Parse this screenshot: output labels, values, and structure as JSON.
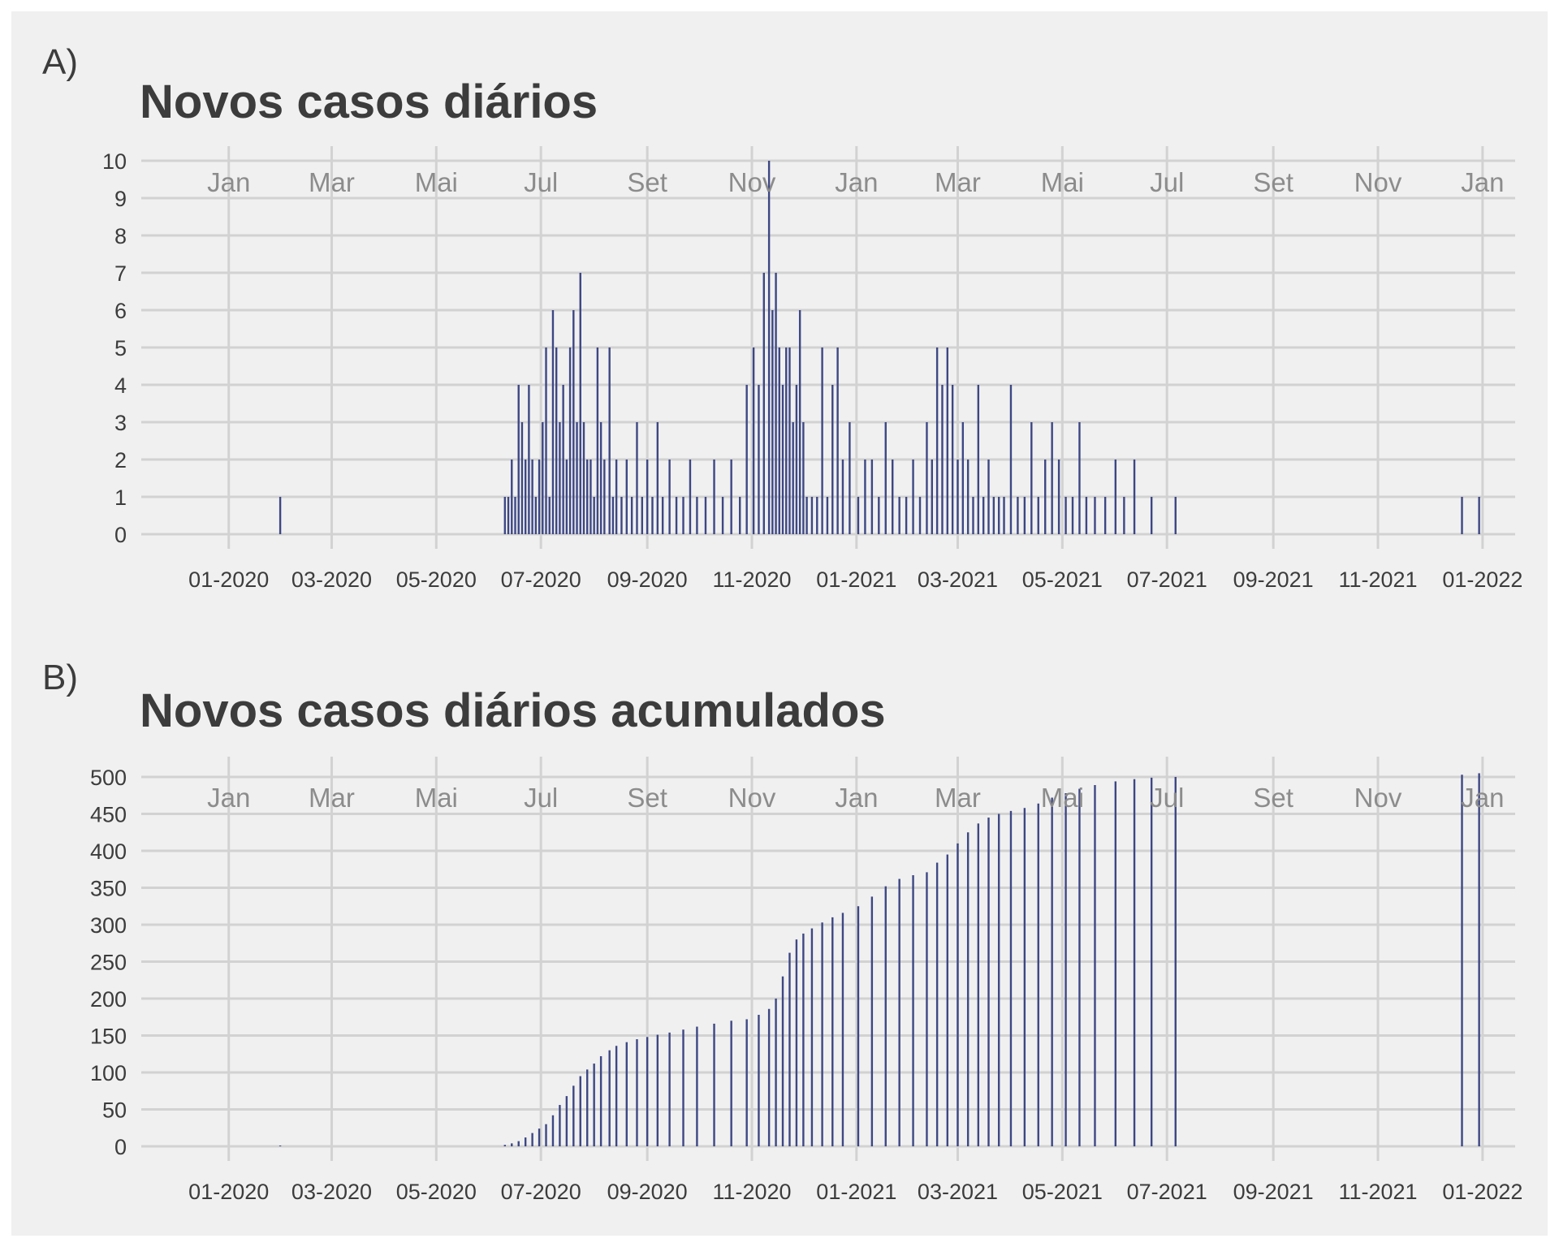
{
  "panels": [
    {
      "tag": "A)",
      "title": "Novos casos diários"
    },
    {
      "tag": "B)",
      "title": "Novos casos diários acumulados"
    }
  ],
  "chart_data": [
    {
      "type": "bar",
      "title": "Novos casos diários",
      "x_axis": "date",
      "xlim": [
        "2019-11-11",
        "2022-01-20"
      ],
      "ylim": [
        0,
        10
      ],
      "yticks": [
        0,
        1,
        2,
        3,
        4,
        5,
        6,
        7,
        8,
        9,
        10
      ],
      "x_ticks_bottom": [
        {
          "date": "2020-01-01",
          "label": "01-2020"
        },
        {
          "date": "2020-03-01",
          "label": "03-2020"
        },
        {
          "date": "2020-05-01",
          "label": "05-2020"
        },
        {
          "date": "2020-07-01",
          "label": "07-2020"
        },
        {
          "date": "2020-09-01",
          "label": "09-2020"
        },
        {
          "date": "2020-11-01",
          "label": "11-2020"
        },
        {
          "date": "2021-01-01",
          "label": "01-2021"
        },
        {
          "date": "2021-03-01",
          "label": "03-2021"
        },
        {
          "date": "2021-05-01",
          "label": "05-2021"
        },
        {
          "date": "2021-07-01",
          "label": "07-2021"
        },
        {
          "date": "2021-09-01",
          "label": "09-2021"
        },
        {
          "date": "2021-11-01",
          "label": "11-2021"
        },
        {
          "date": "2022-01-01",
          "label": "01-2022"
        }
      ],
      "x_ticks_months": [
        "Jan",
        "Mar",
        "Mai",
        "Jul",
        "Set",
        "Nov",
        "Jan",
        "Mar",
        "Mai",
        "Jul",
        "Set",
        "Nov",
        "Jan"
      ],
      "grid": true,
      "bar_color": "#3d4784",
      "x": [
        "2020-01-31",
        "2020-06-10",
        "2020-06-12",
        "2020-06-14",
        "2020-06-16",
        "2020-06-18",
        "2020-06-20",
        "2020-06-22",
        "2020-06-24",
        "2020-06-26",
        "2020-06-28",
        "2020-06-30",
        "2020-07-02",
        "2020-07-04",
        "2020-07-06",
        "2020-07-08",
        "2020-07-10",
        "2020-07-12",
        "2020-07-14",
        "2020-07-16",
        "2020-07-18",
        "2020-07-20",
        "2020-07-22",
        "2020-07-24",
        "2020-07-26",
        "2020-07-28",
        "2020-07-30",
        "2020-08-01",
        "2020-08-03",
        "2020-08-05",
        "2020-08-07",
        "2020-08-10",
        "2020-08-12",
        "2020-08-14",
        "2020-08-17",
        "2020-08-20",
        "2020-08-23",
        "2020-08-26",
        "2020-08-29",
        "2020-09-01",
        "2020-09-04",
        "2020-09-07",
        "2020-09-10",
        "2020-09-14",
        "2020-09-18",
        "2020-09-22",
        "2020-09-26",
        "2020-09-30",
        "2020-10-05",
        "2020-10-10",
        "2020-10-15",
        "2020-10-20",
        "2020-10-25",
        "2020-10-29",
        "2020-11-02",
        "2020-11-05",
        "2020-11-08",
        "2020-11-11",
        "2020-11-13",
        "2020-11-15",
        "2020-11-17",
        "2020-11-19",
        "2020-11-21",
        "2020-11-23",
        "2020-11-25",
        "2020-11-27",
        "2020-11-29",
        "2020-12-01",
        "2020-12-03",
        "2020-12-06",
        "2020-12-09",
        "2020-12-12",
        "2020-12-15",
        "2020-12-18",
        "2020-12-21",
        "2020-12-24",
        "2020-12-28",
        "2021-01-02",
        "2021-01-06",
        "2021-01-10",
        "2021-01-14",
        "2021-01-18",
        "2021-01-22",
        "2021-01-26",
        "2021-01-30",
        "2021-02-03",
        "2021-02-07",
        "2021-02-11",
        "2021-02-14",
        "2021-02-17",
        "2021-02-20",
        "2021-02-23",
        "2021-02-26",
        "2021-03-01",
        "2021-03-04",
        "2021-03-07",
        "2021-03-10",
        "2021-03-13",
        "2021-03-16",
        "2021-03-19",
        "2021-03-22",
        "2021-03-25",
        "2021-03-28",
        "2021-04-01",
        "2021-04-05",
        "2021-04-09",
        "2021-04-13",
        "2021-04-17",
        "2021-04-21",
        "2021-04-25",
        "2021-04-29",
        "2021-05-03",
        "2021-05-07",
        "2021-05-11",
        "2021-05-15",
        "2021-05-20",
        "2021-05-26",
        "2021-06-01",
        "2021-06-06",
        "2021-06-12",
        "2021-06-22",
        "2021-07-06",
        "2021-12-20",
        "2021-12-30"
      ],
      "values": [
        1,
        1,
        1,
        2,
        1,
        4,
        3,
        2,
        4,
        2,
        1,
        2,
        3,
        5,
        1,
        6,
        5,
        3,
        4,
        2,
        5,
        6,
        3,
        7,
        3,
        2,
        2,
        1,
        5,
        3,
        2,
        5,
        1,
        2,
        1,
        2,
        1,
        3,
        1,
        2,
        1,
        3,
        1,
        2,
        1,
        1,
        2,
        1,
        1,
        2,
        1,
        2,
        1,
        4,
        5,
        4,
        7,
        10,
        6,
        7,
        5,
        4,
        5,
        5,
        3,
        4,
        6,
        3,
        1,
        1,
        1,
        5,
        1,
        4,
        5,
        2,
        3,
        1,
        2,
        2,
        1,
        3,
        2,
        1,
        1,
        2,
        1,
        3,
        2,
        5,
        4,
        5,
        4,
        2,
        3,
        2,
        1,
        4,
        1,
        2,
        1,
        1,
        1,
        4,
        1,
        1,
        3,
        1,
        2,
        3,
        2,
        1,
        1,
        3,
        1,
        1,
        1,
        2,
        1,
        2,
        1,
        1,
        1,
        1
      ]
    },
    {
      "type": "bar",
      "title": "Novos casos diários acumulados",
      "x_axis": "date",
      "xlim": [
        "2019-11-11",
        "2022-01-20"
      ],
      "ylim": [
        0,
        500
      ],
      "yticks": [
        0,
        50,
        100,
        150,
        200,
        250,
        300,
        350,
        400,
        450,
        500
      ],
      "x_ticks_bottom": [
        {
          "date": "2020-01-01",
          "label": "01-2020"
        },
        {
          "date": "2020-03-01",
          "label": "03-2020"
        },
        {
          "date": "2020-05-01",
          "label": "05-2020"
        },
        {
          "date": "2020-07-01",
          "label": "07-2020"
        },
        {
          "date": "2020-09-01",
          "label": "09-2020"
        },
        {
          "date": "2020-11-01",
          "label": "11-2020"
        },
        {
          "date": "2021-01-01",
          "label": "01-2021"
        },
        {
          "date": "2021-03-01",
          "label": "03-2021"
        },
        {
          "date": "2021-05-01",
          "label": "05-2021"
        },
        {
          "date": "2021-07-01",
          "label": "07-2021"
        },
        {
          "date": "2021-09-01",
          "label": "09-2021"
        },
        {
          "date": "2021-11-01",
          "label": "11-2021"
        },
        {
          "date": "2022-01-01",
          "label": "01-2022"
        }
      ],
      "x_ticks_months": [
        "Jan",
        "Mar",
        "Mai",
        "Jul",
        "Set",
        "Nov",
        "Jan",
        "Mar",
        "Mai",
        "Jul",
        "Set",
        "Nov",
        "Jan"
      ],
      "grid": true,
      "bar_color": "#3d4784",
      "x": [
        "2020-01-31",
        "2020-06-10",
        "2020-06-14",
        "2020-06-18",
        "2020-06-22",
        "2020-06-26",
        "2020-06-30",
        "2020-07-04",
        "2020-07-08",
        "2020-07-12",
        "2020-07-16",
        "2020-07-20",
        "2020-07-24",
        "2020-07-28",
        "2020-08-01",
        "2020-08-05",
        "2020-08-10",
        "2020-08-14",
        "2020-08-20",
        "2020-08-26",
        "2020-09-01",
        "2020-09-07",
        "2020-09-14",
        "2020-09-22",
        "2020-09-30",
        "2020-10-10",
        "2020-10-20",
        "2020-10-29",
        "2020-11-05",
        "2020-11-11",
        "2020-11-15",
        "2020-11-19",
        "2020-11-23",
        "2020-11-27",
        "2020-12-01",
        "2020-12-06",
        "2020-12-12",
        "2020-12-18",
        "2020-12-24",
        "2021-01-02",
        "2021-01-10",
        "2021-01-18",
        "2021-01-26",
        "2021-02-03",
        "2021-02-11",
        "2021-02-17",
        "2021-02-23",
        "2021-03-01",
        "2021-03-07",
        "2021-03-13",
        "2021-03-19",
        "2021-03-25",
        "2021-04-01",
        "2021-04-09",
        "2021-04-17",
        "2021-04-25",
        "2021-05-03",
        "2021-05-11",
        "2021-05-20",
        "2021-06-01",
        "2021-06-12",
        "2021-06-22",
        "2021-07-06",
        "2021-12-20",
        "2021-12-30"
      ],
      "values": [
        1,
        2,
        4,
        7,
        12,
        18,
        24,
        30,
        42,
        56,
        68,
        82,
        95,
        104,
        112,
        122,
        130,
        136,
        141,
        145,
        148,
        151,
        154,
        158,
        162,
        166,
        170,
        172,
        178,
        186,
        200,
        230,
        262,
        280,
        288,
        295,
        303,
        310,
        316,
        325,
        338,
        352,
        362,
        367,
        371,
        384,
        395,
        410,
        425,
        437,
        445,
        450,
        454,
        458,
        464,
        472,
        478,
        484,
        489,
        494,
        497,
        499,
        500,
        503,
        505
      ]
    }
  ]
}
